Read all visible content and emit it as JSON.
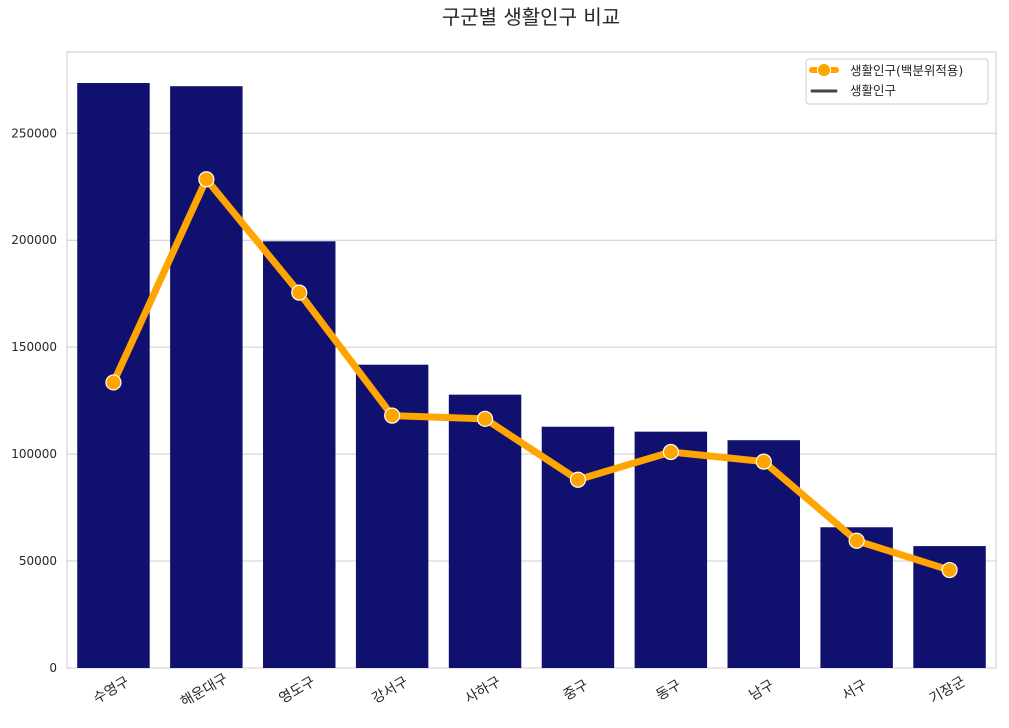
{
  "chart_data": {
    "type": "bar",
    "title": "구군별 생활인구 비교",
    "xlabel": "",
    "ylabel": "",
    "categories": [
      "수영구",
      "해운대구",
      "영도구",
      "강서구",
      "사하구",
      "중구",
      "동구",
      "남구",
      "서구",
      "기장군"
    ],
    "ylim": [
      0,
      288000
    ],
    "yticks": [
      0,
      50000,
      100000,
      150000,
      200000,
      250000
    ],
    "ytick_labels": [
      "0",
      "50000",
      "100000",
      "150000",
      "200000",
      "250000"
    ],
    "grid": "horizontal",
    "legend_position": "top-right",
    "series": [
      {
        "name": "생활인구(백분위적용)",
        "kind": "line",
        "marker": "circle",
        "color": "#FFA500",
        "values": [
          133500,
          228500,
          175500,
          118000,
          116500,
          88000,
          101000,
          96500,
          59500,
          45800
        ]
      },
      {
        "name": "생활인구",
        "kind": "bar",
        "color": "#10106E",
        "legend_color": "#444444",
        "values": [
          273500,
          272000,
          199500,
          141800,
          127800,
          112800,
          110500,
          106500,
          65800,
          57000
        ]
      }
    ]
  }
}
